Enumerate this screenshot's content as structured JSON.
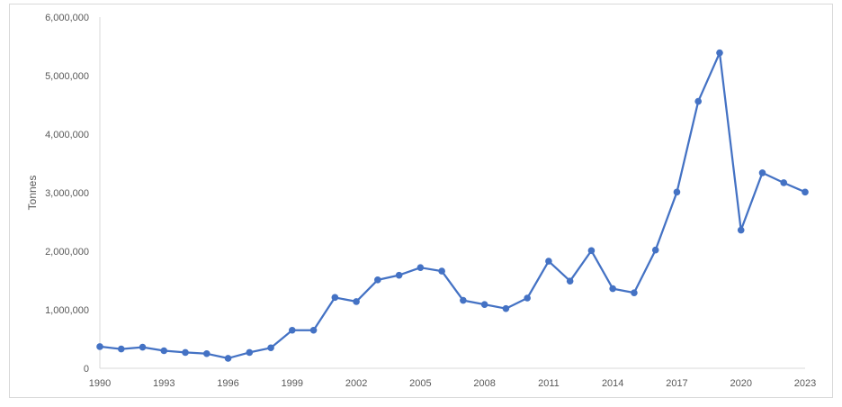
{
  "chart_data": {
    "type": "line",
    "title": "",
    "xlabel": "",
    "ylabel": "Tonnes",
    "ylim": [
      0,
      6000000
    ],
    "y_ticks": [
      "0",
      "1,000,000",
      "2,000,000",
      "3,000,000",
      "4,000,000",
      "5,000,000",
      "6,000,000"
    ],
    "x_ticks": [
      "1990",
      "1993",
      "1996",
      "1999",
      "2002",
      "2005",
      "2008",
      "2011",
      "2014",
      "2017",
      "2020",
      "2023"
    ],
    "grid": false,
    "legend": "none",
    "line_color": "#4472c4",
    "x": [
      1990,
      1991,
      1992,
      1993,
      1994,
      1995,
      1996,
      1997,
      1998,
      1999,
      2000,
      2001,
      2002,
      2003,
      2004,
      2005,
      2006,
      2007,
      2008,
      2009,
      2010,
      2011,
      2012,
      2013,
      2014,
      2015,
      2016,
      2017,
      2018,
      2019,
      2020,
      2021,
      2022,
      2023
    ],
    "series": [
      {
        "values": [
          370000,
          330000,
          360000,
          300000,
          270000,
          250000,
          170000,
          270000,
          350000,
          650000,
          650000,
          1210000,
          1140000,
          1510000,
          1590000,
          1720000,
          1660000,
          1160000,
          1090000,
          1020000,
          1200000,
          1830000,
          1490000,
          2010000,
          1360000,
          1290000,
          2020000,
          3010000,
          4560000,
          5390000,
          2360000,
          3340000,
          3170000,
          3010000
        ]
      }
    ]
  }
}
